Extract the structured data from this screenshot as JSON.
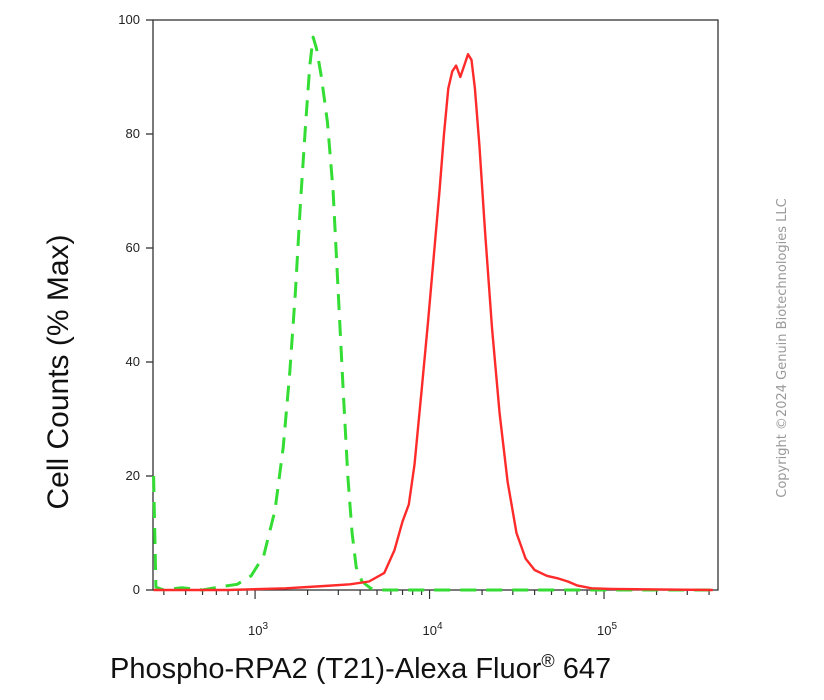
{
  "chart_data": {
    "type": "line",
    "title": "",
    "xlabel": "Phospho-RPA2 (T21)-Alexa Fluor",
    "xlabel_superscript": "®",
    "xlabel_suffix": " 647",
    "ylabel": "Cell Counts (% Max)",
    "x_scale": "log",
    "xlim": [
      260,
      450000
    ],
    "ylim": [
      0,
      100
    ],
    "y_ticks": [
      0,
      20,
      40,
      60,
      80,
      100
    ],
    "x_ticks": [
      {
        "value": 1000,
        "base": "10",
        "exp": "3"
      },
      {
        "value": 10000,
        "base": "10",
        "exp": "4"
      },
      {
        "value": 100000,
        "base": "10",
        "exp": "5"
      }
    ],
    "grid": false,
    "legend": "none",
    "series": [
      {
        "style": "dashed",
        "color": "#33dd33",
        "points": [
          [
            262,
            20
          ],
          [
            270,
            0.5
          ],
          [
            300,
            0
          ],
          [
            380,
            0.4
          ],
          [
            500,
            0
          ],
          [
            640,
            0.6
          ],
          [
            790,
            1
          ],
          [
            950,
            2.5
          ],
          [
            1120,
            6
          ],
          [
            1300,
            14
          ],
          [
            1450,
            25
          ],
          [
            1580,
            38
          ],
          [
            1700,
            52
          ],
          [
            1820,
            68
          ],
          [
            1950,
            82
          ],
          [
            2060,
            92
          ],
          [
            2150,
            97
          ],
          [
            2250,
            95
          ],
          [
            2400,
            90
          ],
          [
            2600,
            82
          ],
          [
            2800,
            70
          ],
          [
            3000,
            52
          ],
          [
            3200,
            35
          ],
          [
            3400,
            20
          ],
          [
            3600,
            10
          ],
          [
            3800,
            4
          ],
          [
            4100,
            1.5
          ],
          [
            4600,
            0.3
          ],
          [
            5200,
            0
          ],
          [
            10000,
            0
          ],
          [
            50000,
            0
          ],
          [
            250000,
            0
          ],
          [
            420000,
            0
          ]
        ]
      },
      {
        "style": "solid",
        "color": "#ff2a2a",
        "points": [
          [
            262,
            0
          ],
          [
            700,
            0
          ],
          [
            1500,
            0.3
          ],
          [
            2500,
            0.7
          ],
          [
            3500,
            1
          ],
          [
            4500,
            1.5
          ],
          [
            5500,
            3
          ],
          [
            6300,
            7
          ],
          [
            7000,
            12
          ],
          [
            7600,
            15
          ],
          [
            8200,
            22
          ],
          [
            9000,
            35
          ],
          [
            9800,
            47
          ],
          [
            10600,
            59
          ],
          [
            11400,
            70
          ],
          [
            12100,
            80
          ],
          [
            12800,
            88
          ],
          [
            13500,
            91
          ],
          [
            14200,
            92
          ],
          [
            15000,
            90
          ],
          [
            15800,
            92
          ],
          [
            16600,
            94
          ],
          [
            17400,
            93
          ],
          [
            18200,
            88
          ],
          [
            19300,
            78
          ],
          [
            20800,
            63
          ],
          [
            22800,
            46
          ],
          [
            25200,
            31
          ],
          [
            28000,
            19
          ],
          [
            31500,
            10
          ],
          [
            35500,
            5.5
          ],
          [
            40000,
            3.5
          ],
          [
            47000,
            2.5
          ],
          [
            55000,
            2
          ],
          [
            62000,
            1.5
          ],
          [
            70000,
            0.8
          ],
          [
            85000,
            0.3
          ],
          [
            110000,
            0.2
          ],
          [
            200000,
            0.1
          ],
          [
            420000,
            0
          ]
        ]
      }
    ]
  },
  "copyright": "Copyright ©2024 Genuin Biotechnologies LLC"
}
